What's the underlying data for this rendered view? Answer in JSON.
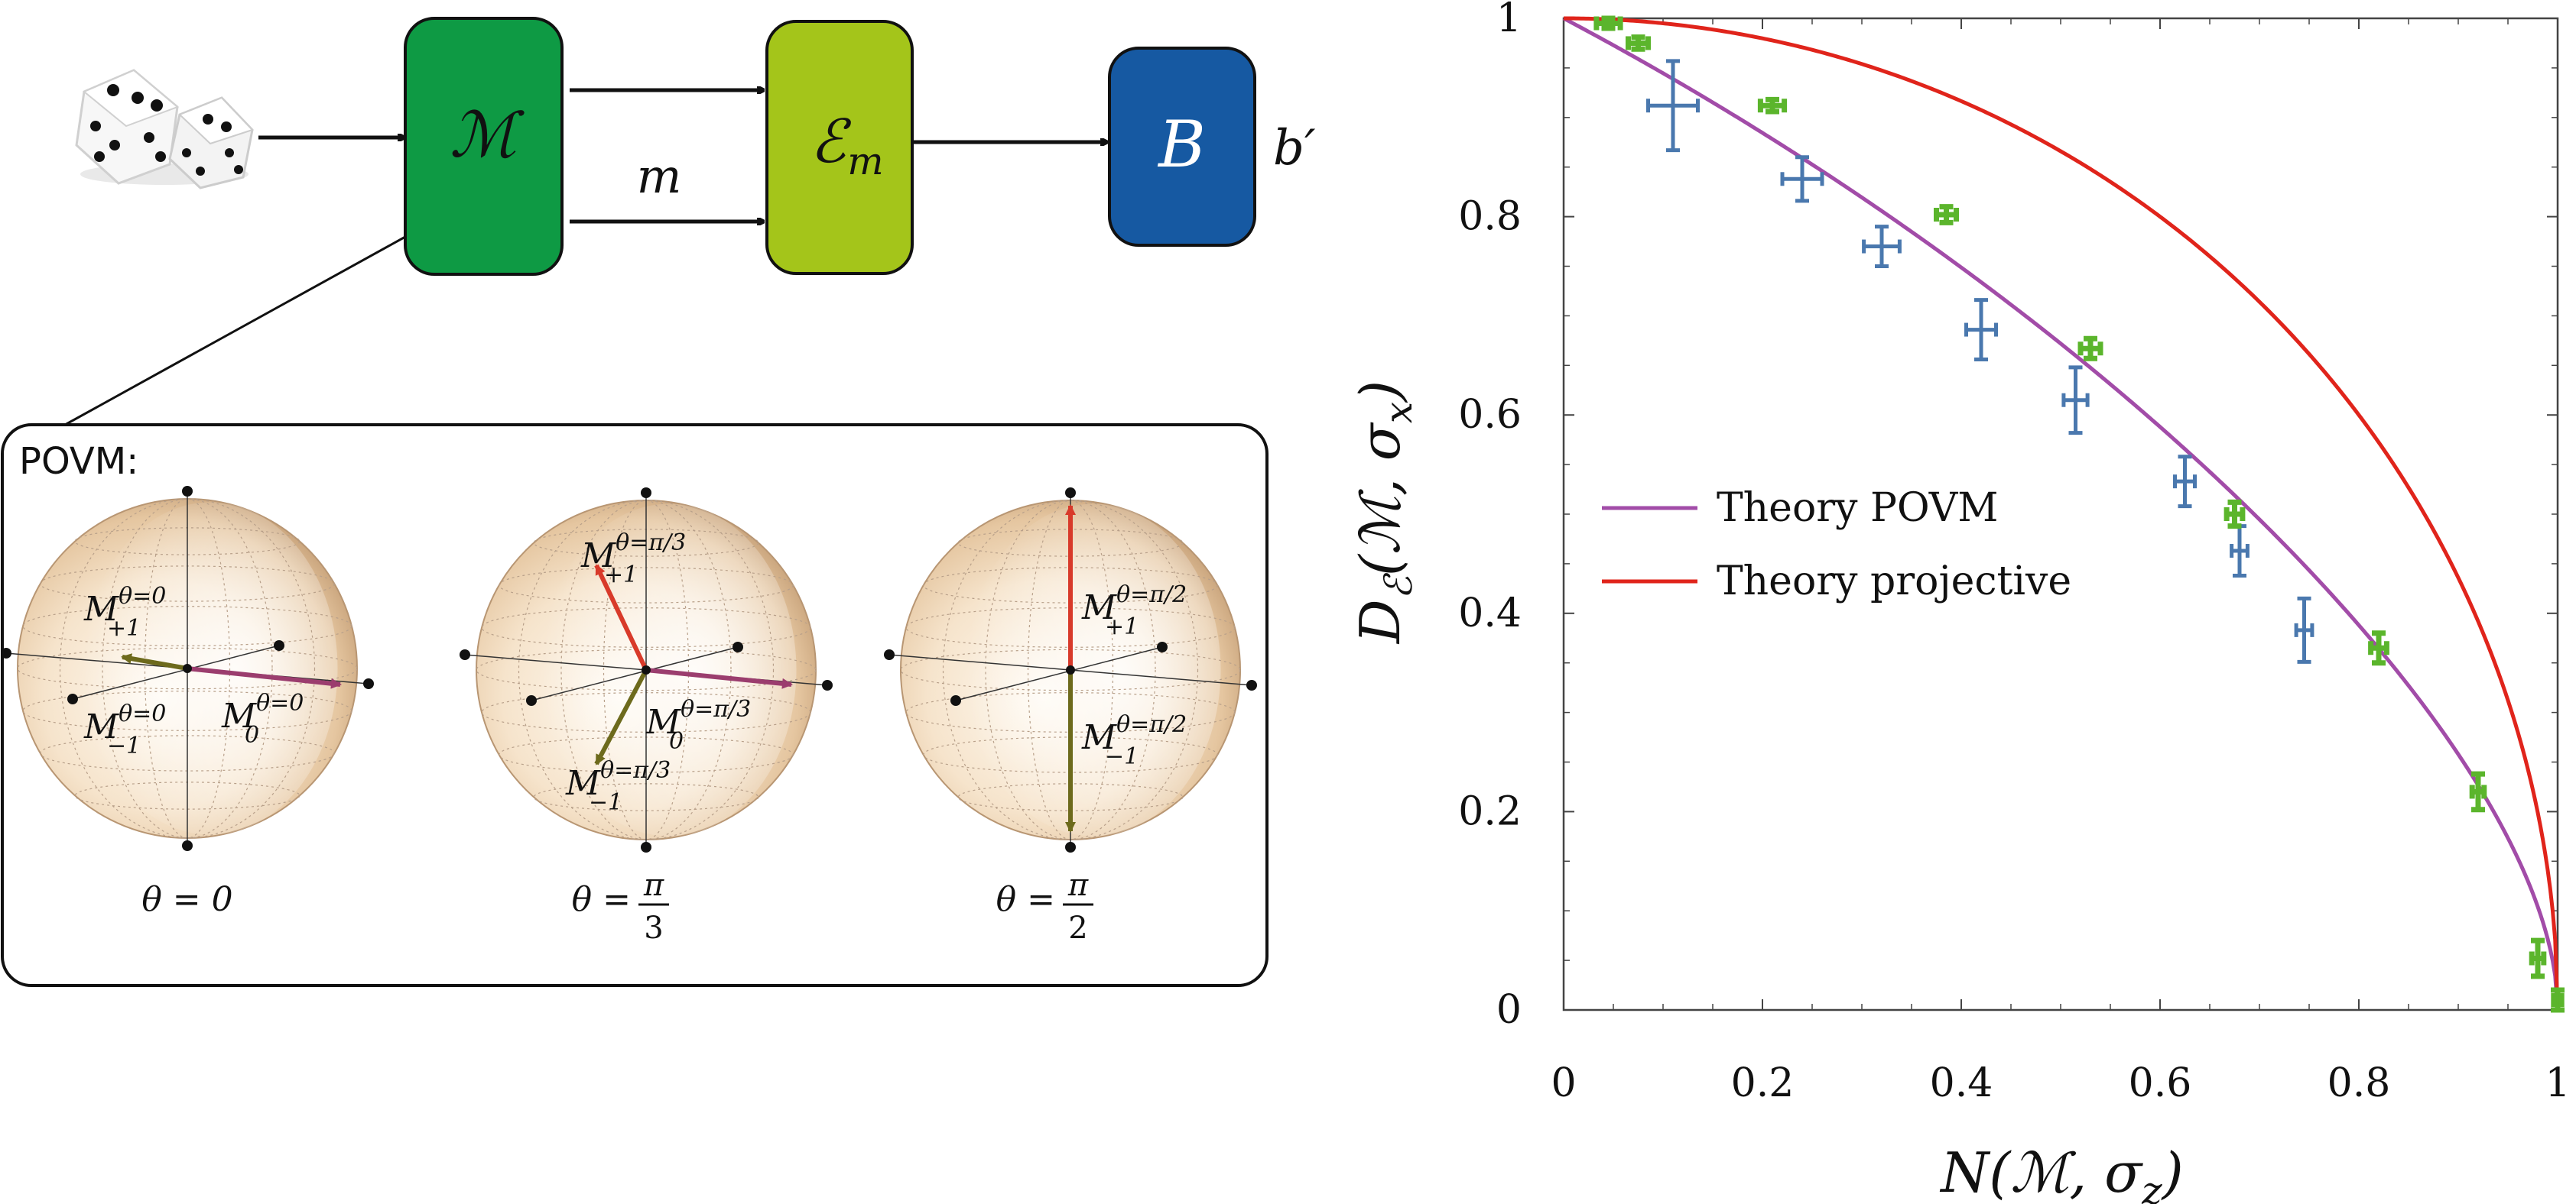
{
  "diagram": {
    "box_measure": "ℳ",
    "box_channel": "ℰ",
    "box_channel_sub": "m",
    "box_bob": "B",
    "wire_label": "m",
    "output_label": "b′",
    "povm_title": "POVM:",
    "spheres": [
      {
        "labels": [
          {
            "base": "M",
            "sup": "θ=0",
            "sub": "+1"
          },
          {
            "base": "M",
            "sup": "θ=0",
            "sub": "−1"
          },
          {
            "base": "M",
            "sup": "θ=0",
            "sub": "0"
          }
        ],
        "caption": "θ = 0"
      },
      {
        "labels": [
          {
            "base": "M",
            "sup": "θ=π/3",
            "sub": "+1"
          },
          {
            "base": "M",
            "sup": "θ=π/3",
            "sub": "0"
          },
          {
            "base": "M",
            "sup": "θ=π/3",
            "sub": "−1"
          }
        ],
        "caption_prefix": "θ =",
        "caption_num": "π",
        "caption_den": "3"
      },
      {
        "labels": [
          {
            "base": "M",
            "sup": "θ=π/2",
            "sub": "+1"
          },
          {
            "base": "M",
            "sup": "θ=π/2",
            "sub": "−1"
          }
        ],
        "caption_prefix": "θ =",
        "caption_num": "π",
        "caption_den": "2"
      }
    ],
    "colors": {
      "measure_box": "#0e9a44",
      "channel_box": "#a4c51a",
      "bob_box": "#1659a2",
      "sphere": "#f1d6b4",
      "arrow_red": "#d83a2a",
      "arrow_olive": "#6d6a1c",
      "arrow_purple": "#9b3d6e"
    }
  },
  "chart_data": {
    "type": "scatter",
    "xlabel_main": "N(",
    "xlabel_symbol": "ℳ",
    "xlabel_rest": ", σ",
    "xlabel_sub": "z",
    "ylabel_main": "D",
    "ylabel_sub": "ℰ",
    "ylabel_rest": "(ℳ, σ",
    "ylabel_sub2": "x",
    "xlim": [
      0,
      1
    ],
    "ylim": [
      0,
      1
    ],
    "xticks": [
      0,
      0.2,
      0.4,
      0.6,
      0.8,
      1
    ],
    "xtick_labels": [
      "0",
      "0.2",
      "0.4",
      "0.6",
      "0.8",
      "1"
    ],
    "yticks": [
      0,
      0.2,
      0.4,
      0.6,
      0.8,
      1
    ],
    "ytick_labels": [
      "0",
      "0.2",
      "0.4",
      "0.6",
      "0.8",
      "1"
    ],
    "grid": false,
    "legend_position": "center-left",
    "series": [
      {
        "name": "Theory POVM",
        "kind": "line",
        "color": "#a24ca8",
        "function": "povm"
      },
      {
        "name": "Theory projective",
        "kind": "line",
        "color": "#e0241b",
        "function": "projective"
      }
    ],
    "data_sets": [
      {
        "kind": "errorbar",
        "color": "#4a78ae",
        "points": [
          {
            "x": 0.11,
            "y": 0.912,
            "xerr": 0.025,
            "yerr": 0.045
          },
          {
            "x": 0.24,
            "y": 0.838,
            "xerr": 0.02,
            "yerr": 0.022
          },
          {
            "x": 0.32,
            "y": 0.77,
            "xerr": 0.018,
            "yerr": 0.02
          },
          {
            "x": 0.42,
            "y": 0.686,
            "xerr": 0.015,
            "yerr": 0.03
          },
          {
            "x": 0.515,
            "y": 0.615,
            "xerr": 0.012,
            "yerr": 0.033
          },
          {
            "x": 0.625,
            "y": 0.533,
            "xerr": 0.01,
            "yerr": 0.025
          },
          {
            "x": 0.68,
            "y": 0.463,
            "xerr": 0.008,
            "yerr": 0.025
          },
          {
            "x": 0.745,
            "y": 0.383,
            "xerr": 0.008,
            "yerr": 0.032
          }
        ]
      },
      {
        "kind": "errorbar",
        "color": "#5bb52c",
        "points": [
          {
            "x": 0.045,
            "y": 0.995,
            "xerr": 0.012,
            "yerr": 0.005
          },
          {
            "x": 0.075,
            "y": 0.975,
            "xerr": 0.01,
            "yerr": 0.006
          },
          {
            "x": 0.21,
            "y": 0.912,
            "xerr": 0.012,
            "yerr": 0.006
          },
          {
            "x": 0.385,
            "y": 0.802,
            "xerr": 0.01,
            "yerr": 0.008
          },
          {
            "x": 0.53,
            "y": 0.667,
            "xerr": 0.01,
            "yerr": 0.01
          },
          {
            "x": 0.675,
            "y": 0.5,
            "xerr": 0.008,
            "yerr": 0.012
          },
          {
            "x": 0.82,
            "y": 0.365,
            "xerr": 0.008,
            "yerr": 0.015
          },
          {
            "x": 0.92,
            "y": 0.22,
            "xerr": 0.006,
            "yerr": 0.018
          },
          {
            "x": 0.98,
            "y": 0.052,
            "xerr": 0.006,
            "yerr": 0.018
          },
          {
            "x": 1.0,
            "y": 0.01,
            "xerr": 0.004,
            "yerr": 0.01
          }
        ]
      }
    ]
  }
}
